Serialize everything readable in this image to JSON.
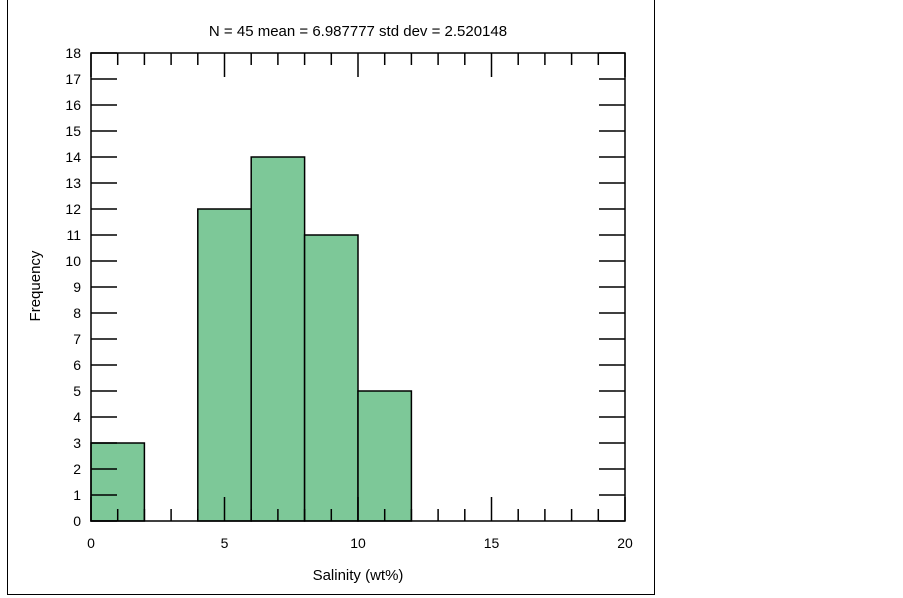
{
  "chart_data": {
    "type": "bar",
    "title": "N = 45 mean = 6.987777 std dev = 2.520148",
    "xlabel": "Salinity (wt%)",
    "ylabel": "Frequency",
    "xlim": [
      0,
      20
    ],
    "ylim": [
      0,
      18
    ],
    "x_ticks": [
      0,
      5,
      10,
      15,
      20
    ],
    "y_ticks": [
      0,
      1,
      2,
      3,
      4,
      5,
      6,
      7,
      8,
      9,
      10,
      11,
      12,
      13,
      14,
      15,
      16,
      17,
      18
    ],
    "bins": [
      {
        "start": 0,
        "end": 2,
        "count": 3
      },
      {
        "start": 2,
        "end": 4,
        "count": 0
      },
      {
        "start": 4,
        "end": 6,
        "count": 12
      },
      {
        "start": 6,
        "end": 8,
        "count": 14
      },
      {
        "start": 8,
        "end": 10,
        "count": 11
      },
      {
        "start": 10,
        "end": 12,
        "count": 5
      }
    ],
    "bar_color": "#7dc898",
    "grid": false
  }
}
